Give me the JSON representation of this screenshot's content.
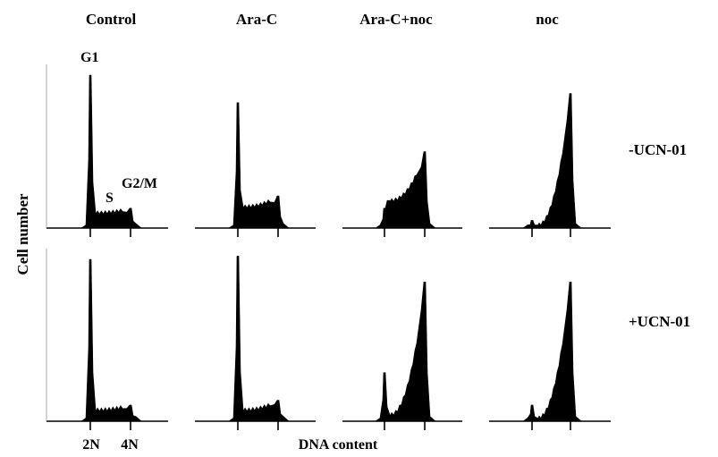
{
  "chart_data": {
    "type": "area",
    "ylabel": "Cell number",
    "xlabel": "DNA content",
    "x_tick_labels": [
      "2N",
      "4N"
    ],
    "columns": [
      "Control",
      "Ara-C",
      "Ara-C+noc",
      "noc"
    ],
    "rows": [
      "-UCN-01",
      "+UCN-01"
    ],
    "phase_labels": [
      "G1",
      "S",
      "G2/M"
    ],
    "panels": [
      {
        "row": "-UCN-01",
        "column": "Control",
        "g1_peak": 1.0,
        "s_level": 0.1,
        "g2m_peak": 0.13
      },
      {
        "row": "-UCN-01",
        "column": "Ara-C",
        "g1_peak": 0.82,
        "s_level": 0.14,
        "g2m_peak": 0.21
      },
      {
        "row": "-UCN-01",
        "column": "Ara-C+noc",
        "g1_peak": 0.13,
        "s_level": 0.18,
        "g2m_peak": 0.5
      },
      {
        "row": "-UCN-01",
        "column": "noc",
        "g1_peak": 0.05,
        "s_level": 0.02,
        "g2m_peak": 0.88
      },
      {
        "row": "+UCN-01",
        "column": "Control",
        "g1_peak": 1.0,
        "s_level": 0.07,
        "g2m_peak": 0.1
      },
      {
        "row": "+UCN-01",
        "column": "Ara-C",
        "g1_peak": 1.02,
        "s_level": 0.07,
        "g2m_peak": 0.13
      },
      {
        "row": "+UCN-01",
        "column": "Ara-C+noc",
        "g1_peak": 0.3,
        "s_level": 0.04,
        "g2m_peak": 0.86
      },
      {
        "row": "+UCN-01",
        "column": "noc",
        "g1_peak": 0.1,
        "s_level": 0.02,
        "g2m_peak": 0.86
      }
    ]
  }
}
